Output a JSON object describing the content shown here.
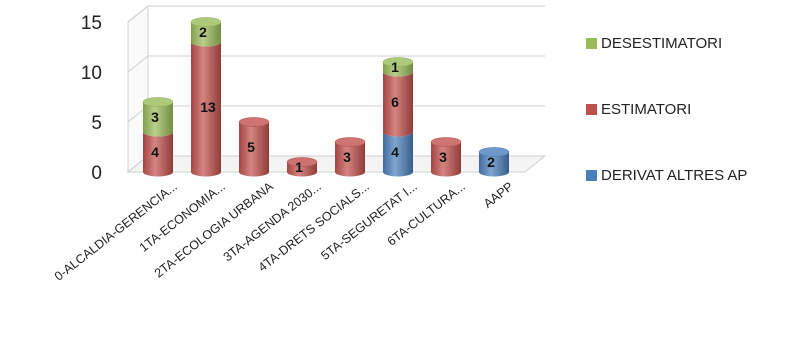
{
  "chart_data": {
    "type": "bar",
    "stacked": true,
    "three_d": true,
    "categories": [
      "0-ALCALDIA-GERENCIA...",
      "1TA-ECONOMIA...",
      "2TA-ECOLOGIA URBANA",
      "3TA-AGENDA 2030...",
      "4TA-DRETS SOCIALS...",
      "5TA-SEGURETAT I...",
      "6TA-CULTURA...",
      "AAPP"
    ],
    "series": [
      {
        "name": "DERIVAT ALTRES AP",
        "color": "#4A7EBB",
        "values": [
          0,
          0,
          0,
          0,
          0,
          4,
          0,
          2
        ]
      },
      {
        "name": "ESTIMATORI",
        "color": "#C0504D",
        "values": [
          4,
          13,
          5,
          1,
          3,
          6,
          3,
          0
        ]
      },
      {
        "name": "DESESTIMATORI",
        "color": "#9BBB59",
        "values": [
          3,
          2,
          0,
          0,
          0,
          1,
          0,
          0
        ]
      }
    ],
    "data_labels": [
      [
        "",
        "",
        "",
        "",
        "",
        "4",
        "",
        "2"
      ],
      [
        "4",
        "13",
        "5",
        "1",
        "3",
        "6",
        "3",
        ""
      ],
      [
        "3",
        "2",
        "",
        "",
        "",
        "1",
        "",
        ""
      ]
    ],
    "yticks": [
      "0",
      "5",
      "10",
      "15"
    ],
    "ylim": [
      0,
      15
    ],
    "legend": {
      "position": "right",
      "entries": [
        "DESESTIMATORI",
        "ESTIMATORI",
        "DERIVAT ALTRES AP"
      ]
    },
    "grid": true
  }
}
